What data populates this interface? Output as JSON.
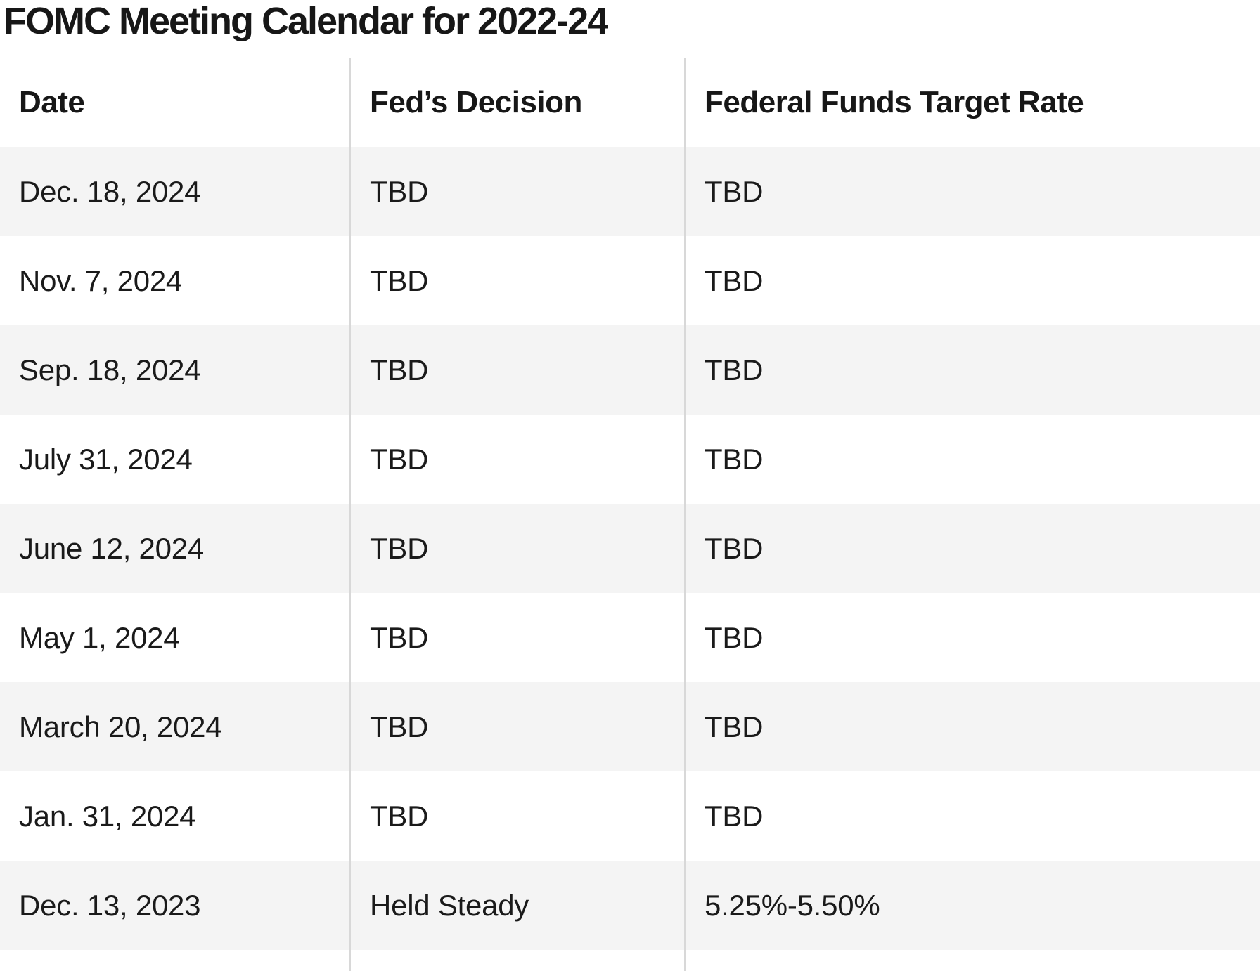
{
  "page": {
    "title": "FOMC Meeting Calendar for 2022-24"
  },
  "chart_data": {
    "type": "table",
    "title": "FOMC Meeting Calendar for 2022-24",
    "columns": [
      "Date",
      "Fed’s Decision",
      "Federal Funds Target Rate"
    ],
    "rows": [
      [
        "Dec. 18, 2024",
        "TBD",
        "TBD"
      ],
      [
        "Nov. 7, 2024",
        "TBD",
        "TBD"
      ],
      [
        "Sep. 18, 2024",
        "TBD",
        "TBD"
      ],
      [
        "July 31, 2024",
        "TBD",
        "TBD"
      ],
      [
        "June 12, 2024",
        "TBD",
        "TBD"
      ],
      [
        "May 1, 2024",
        "TBD",
        "TBD"
      ],
      [
        "March 20, 2024",
        "TBD",
        "TBD"
      ],
      [
        "Jan. 31, 2024",
        "TBD",
        "TBD"
      ],
      [
        "Dec. 13, 2023",
        "Held Steady",
        "5.25%-5.50%"
      ]
    ],
    "layout": {
      "stripe_color": "#f4f4f4",
      "divider_color": "#d8d8d8",
      "text_color": "#1a1a1a",
      "background_color": "#ffffff",
      "striped_rows": "odd",
      "bottom_row_clipped": true
    }
  }
}
